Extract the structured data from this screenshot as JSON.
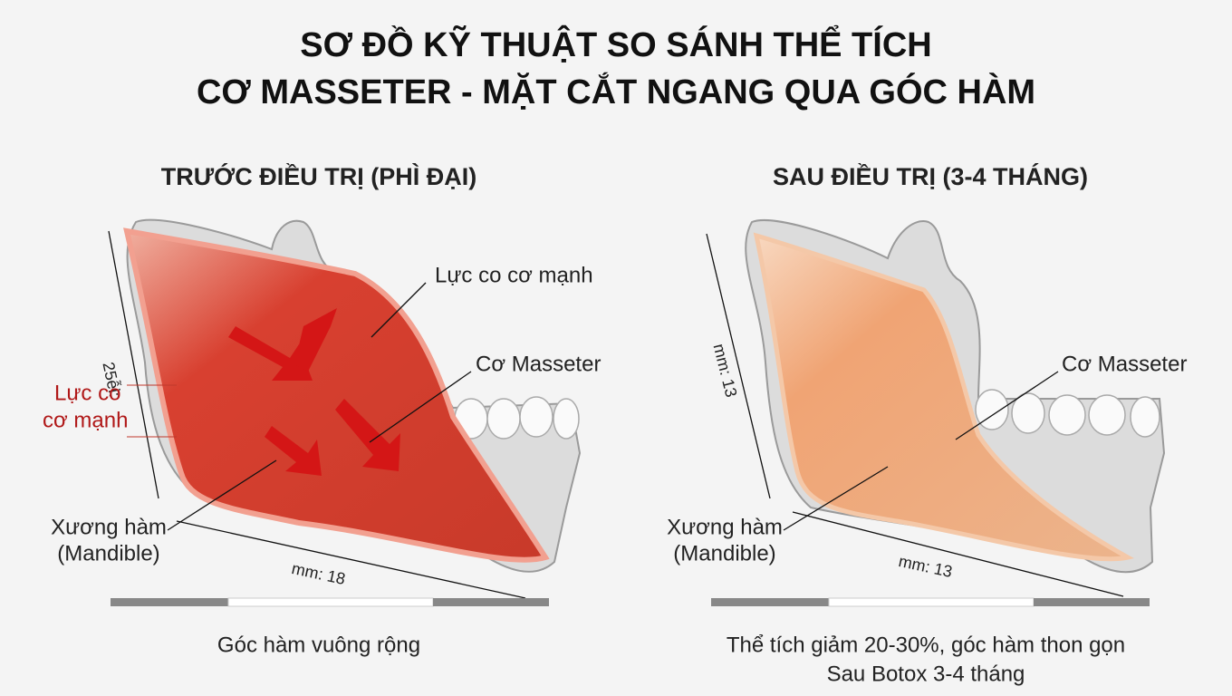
{
  "title": [
    "SƠ ĐỒ KỸ THUẬT SO SÁNH THỂ TÍCH",
    "CƠ MASSETER - MẶT CẮT NGANG QUA GÓC HÀM"
  ],
  "before": {
    "heading": "TRƯỚC ĐIỀU TRỊ (PHÌ ĐẠI)",
    "force_label": "Lực co cơ mạnh",
    "muscle_label": "Cơ Masseter",
    "side_force_label": [
      "Lực co",
      "cơ mạnh"
    ],
    "bone_label": [
      "Xương hàm",
      "(Mandible)"
    ],
    "height_label": "25ễi:",
    "width_label": "mm: 18",
    "caption": [
      "Góc hàm vuông rộng"
    ]
  },
  "after": {
    "heading": "SAU ĐIỀU TRỊ (3-4 THÁNG)",
    "muscle_label": "Cơ Masseter",
    "bone_label": [
      "Xương hàm",
      "(Mandible)"
    ],
    "height_label": "mm: 13",
    "width_label": "mm: 13",
    "caption": [
      "Thể tích giảm 20-30%, góc hàm thon gọn",
      "Sau Botox 3-4 tháng"
    ]
  }
}
